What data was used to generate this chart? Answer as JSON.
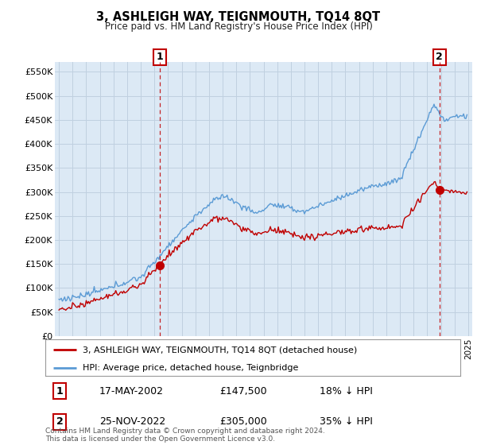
{
  "title": "3, ASHLEIGH WAY, TEIGNMOUTH, TQ14 8QT",
  "subtitle": "Price paid vs. HM Land Registry's House Price Index (HPI)",
  "ylim": [
    0,
    570000
  ],
  "yticks": [
    0,
    50000,
    100000,
    150000,
    200000,
    250000,
    300000,
    350000,
    400000,
    450000,
    500000,
    550000
  ],
  "ytick_labels": [
    "£0",
    "£50K",
    "£100K",
    "£150K",
    "£200K",
    "£250K",
    "£300K",
    "£350K",
    "£400K",
    "£450K",
    "£500K",
    "£550K"
  ],
  "bg_color": "#dce9f5",
  "grid_color": "#c0d0e0",
  "hpi_color": "#5b9bd5",
  "price_color": "#c00000",
  "sale1_x": 2002.38,
  "sale1_y": 147500,
  "sale2_x": 2022.9,
  "sale2_y": 305000,
  "sale1_date": "17-MAY-2002",
  "sale1_price": "£147,500",
  "sale1_hpi_pct": "18% ↓ HPI",
  "sale2_date": "25-NOV-2022",
  "sale2_price": "£305,000",
  "sale2_hpi_pct": "35% ↓ HPI",
  "legend_label1": "3, ASHLEIGH WAY, TEIGNMOUTH, TQ14 8QT (detached house)",
  "legend_label2": "HPI: Average price, detached house, Teignbridge",
  "footer": "Contains HM Land Registry data © Crown copyright and database right 2024.\nThis data is licensed under the Open Government Licence v3.0.",
  "xlim_left": 1994.7,
  "xlim_right": 2025.3
}
